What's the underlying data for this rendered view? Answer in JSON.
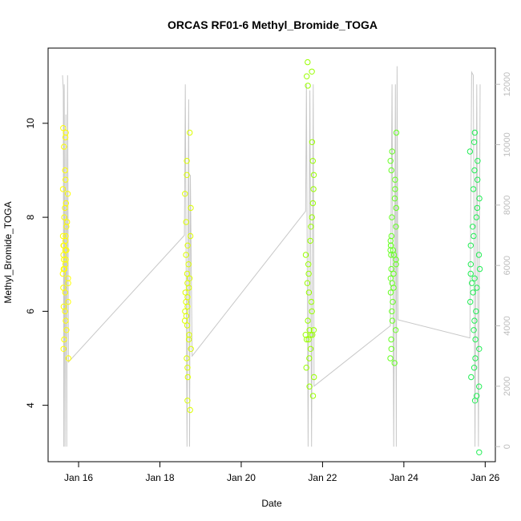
{
  "chart_data": {
    "type": "scatter",
    "title": "ORCAS RF01-6 Methyl_Bromide_TOGA",
    "xlabel": "Date",
    "ylabel": "Methyl_Bromide_TOGA",
    "x_ticks": [
      "Jan 16",
      "Jan 18",
      "Jan 20",
      "Jan 22",
      "Jan 24",
      "Jan 26"
    ],
    "y_ticks": [
      "4",
      "6",
      "8",
      "10"
    ],
    "y2_ticks": [
      "0",
      "2000",
      "4000",
      "6000",
      "8000",
      "10000",
      "12000"
    ],
    "xlim": [
      "2016-01-15T06:00",
      "2016-01-26T06:00"
    ],
    "ylim": [
      2.8,
      11.6
    ],
    "y2lim": [
      -500,
      13200
    ],
    "grid": false,
    "legend": "none",
    "series": [
      {
        "date": "2016-01-15",
        "color": "#ffff00",
        "x_range": [
          "2016-01-15T14:30",
          "2016-01-15T18:00"
        ],
        "y_values": [
          9.7,
          9.8,
          9.9,
          9.5,
          9.0,
          8.8,
          8.6,
          8.5,
          8.3,
          8.2,
          8.0,
          7.9,
          7.8,
          7.6,
          7.5,
          7.4,
          7.3,
          7.2,
          7.1,
          7.0,
          6.9,
          6.8,
          6.7,
          6.6,
          6.5,
          6.4,
          6.2,
          6.1,
          6.0,
          5.8,
          5.6,
          5.4,
          5.2,
          5.0,
          7.3,
          7.1,
          7.6,
          6.9,
          7.4
        ]
      },
      {
        "date": "2016-01-18",
        "color": "#ddff00",
        "x_range": [
          "2016-01-18T14:30",
          "2016-01-18T18:30"
        ],
        "y_values": [
          9.8,
          9.2,
          8.9,
          8.5,
          8.2,
          7.9,
          7.6,
          7.4,
          7.2,
          7.0,
          6.8,
          6.7,
          6.5,
          6.4,
          6.2,
          6.1,
          6.0,
          5.8,
          5.7,
          5.5,
          5.4,
          5.2,
          5.0,
          4.8,
          4.6,
          4.1,
          3.9,
          6.3,
          6.6,
          5.9
        ]
      },
      {
        "date": "2016-01-21",
        "color": "#99ff00",
        "x_range": [
          "2016-01-21T14:00",
          "2016-01-21T19:00"
        ],
        "y_values": [
          11.3,
          11.1,
          11.0,
          10.8,
          9.6,
          9.2,
          8.9,
          8.6,
          8.3,
          8.0,
          7.8,
          7.5,
          7.2,
          7.0,
          6.8,
          6.6,
          6.4,
          6.2,
          6.0,
          5.8,
          5.6,
          5.5,
          5.4,
          5.2,
          5.0,
          4.8,
          4.6,
          4.4,
          4.2,
          5.5,
          5.6,
          5.4,
          5.5
        ]
      },
      {
        "date": "2016-01-23",
        "color": "#66ff22",
        "x_range": [
          "2016-01-23T16:00",
          "2016-01-23T20:00"
        ],
        "y_values": [
          9.8,
          9.4,
          9.2,
          9.0,
          8.8,
          8.6,
          8.4,
          8.2,
          8.0,
          7.8,
          7.6,
          7.5,
          7.4,
          7.3,
          7.2,
          7.1,
          7.0,
          6.9,
          6.8,
          6.7,
          6.6,
          6.5,
          6.4,
          6.2,
          6.0,
          5.8,
          5.6,
          5.4,
          5.2,
          5.0,
          4.9,
          7.4,
          7.3,
          7.2
        ]
      },
      {
        "date": "2016-01-25",
        "color": "#22ee55",
        "x_range": [
          "2016-01-25T15:00",
          "2016-01-25T21:00"
        ],
        "y_values": [
          9.8,
          9.6,
          9.4,
          9.2,
          9.0,
          8.8,
          8.6,
          8.4,
          8.2,
          8.0,
          7.8,
          7.6,
          7.4,
          7.2,
          7.0,
          6.8,
          6.6,
          6.4,
          6.2,
          6.0,
          5.8,
          5.6,
          5.4,
          5.2,
          5.0,
          4.8,
          4.6,
          4.4,
          4.2,
          4.1,
          3.0,
          6.5,
          6.7,
          6.9
        ]
      }
    ],
    "altitude_line": {
      "color": "#c8c8c8",
      "points": [
        [
          "2016-01-15T14:30",
          12300
        ],
        [
          "2016-01-15T15:00",
          11800
        ],
        [
          "2016-01-15T15:15",
          0
        ],
        [
          "2016-01-15T15:30",
          12000
        ],
        [
          "2016-01-15T16:00",
          0
        ],
        [
          "2016-01-15T16:30",
          11000
        ],
        [
          "2016-01-15T17:00",
          0
        ],
        [
          "2016-01-15T17:30",
          12300
        ],
        [
          "2016-01-15T18:00",
          2800
        ],
        [
          "2016-01-18T14:30",
          7000
        ],
        [
          "2016-01-18T15:00",
          12000
        ],
        [
          "2016-01-18T16:00",
          0
        ],
        [
          "2016-01-18T17:00",
          11500
        ],
        [
          "2016-01-18T17:30",
          0
        ],
        [
          "2016-01-18T18:00",
          9000
        ],
        [
          "2016-01-18T19:00",
          3000
        ],
        [
          "2016-01-21T14:00",
          7800
        ],
        [
          "2016-01-21T14:30",
          12000
        ],
        [
          "2016-01-21T15:30",
          0
        ],
        [
          "2016-01-21T16:30",
          11800
        ],
        [
          "2016-01-21T17:30",
          0
        ],
        [
          "2016-01-21T18:30",
          12000
        ],
        [
          "2016-01-21T19:00",
          2000
        ],
        [
          "2016-01-23T16:00",
          4000
        ],
        [
          "2016-01-23T17:00",
          12000
        ],
        [
          "2016-01-23T18:00",
          0
        ],
        [
          "2016-01-23T19:00",
          12000
        ],
        [
          "2016-01-23T19:30",
          0
        ],
        [
          "2016-01-23T20:00",
          12600
        ],
        [
          "2016-01-23T20:30",
          4200
        ],
        [
          "2016-01-25T15:00",
          3600
        ],
        [
          "2016-01-25T16:00",
          12400
        ],
        [
          "2016-01-25T17:00",
          12300
        ],
        [
          "2016-01-25T18:00",
          0
        ],
        [
          "2016-01-25T19:00",
          12000
        ],
        [
          "2016-01-25T20:00",
          0
        ],
        [
          "2016-01-25T21:00",
          12000
        ]
      ]
    }
  }
}
